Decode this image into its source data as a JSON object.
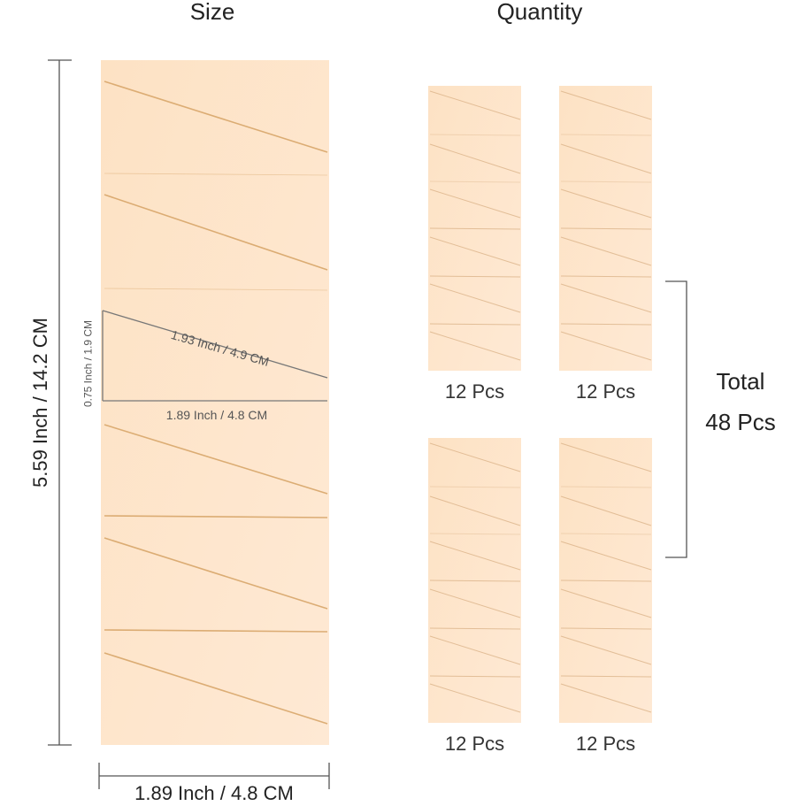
{
  "headings": {
    "size": "Size",
    "quantity": "Quantity"
  },
  "dimensions": {
    "height": "5.59 Inch / 14.2 CM",
    "width_bottom": "1.89 Inch / 4.8 CM",
    "diagonal": "1.93 Inch / 4.9 CM",
    "segment_width": "1.89 Inch / 4.8 CM",
    "segment_height": "0.75 Inch / 1.9 CM"
  },
  "quantity": {
    "packs": [
      {
        "label": "12 Pcs"
      },
      {
        "label": "12 Pcs"
      },
      {
        "label": "12 Pcs"
      },
      {
        "label": "12 Pcs"
      }
    ],
    "total_label": "Total",
    "total_value": "48 Pcs"
  },
  "colors": {
    "sponge": "#fde3c6",
    "cut": "#d8a66a",
    "dim_line": "#555555"
  }
}
